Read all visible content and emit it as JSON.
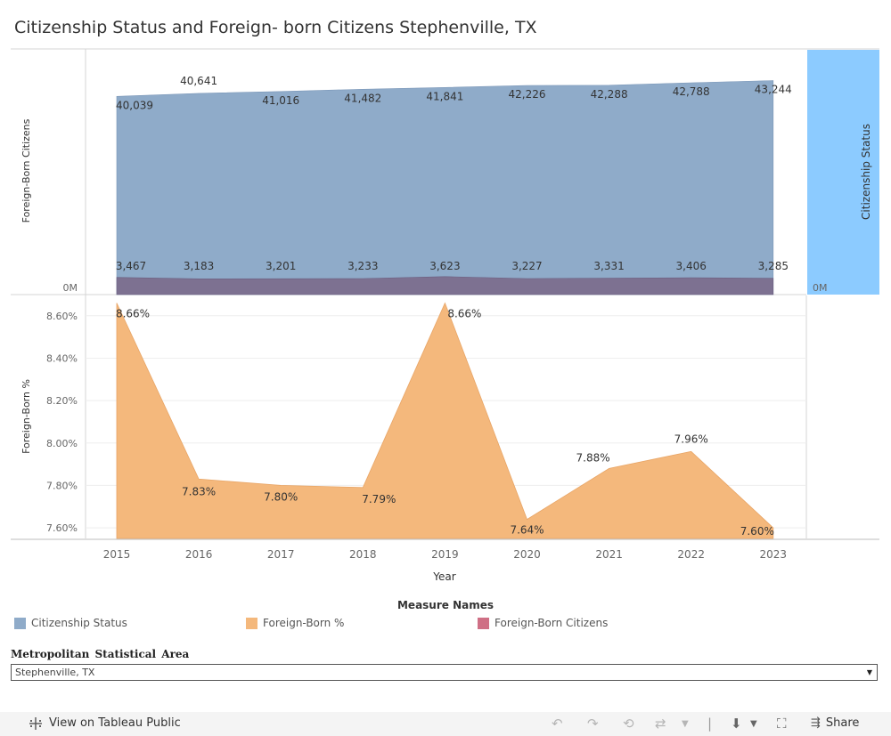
{
  "title": "Citizenship Status and Foreign- born Citizens Stephenville, TX",
  "chart_data": [
    {
      "type": "area",
      "ylabel": "Foreign-Born Citizens",
      "ylabel_right": "Citizenship Status",
      "y_tick": "0M",
      "y_tick_right": "0M",
      "x": [
        "2015",
        "2016",
        "2017",
        "2018",
        "2019",
        "2020",
        "2021",
        "2022",
        "2023"
      ],
      "series": [
        {
          "name": "Citizenship Status",
          "color": "#8fabc9",
          "values": [
            40039,
            40641,
            41016,
            41482,
            41841,
            42226,
            42288,
            42788,
            43244
          ],
          "labels": [
            "40,039",
            "40,641",
            "41,016",
            "41,482",
            "41,841",
            "42,226",
            "42,288",
            "42,788",
            "43,244"
          ]
        },
        {
          "name": "Foreign-Born Citizens",
          "color": "#7d7191",
          "values": [
            3467,
            3183,
            3201,
            3233,
            3623,
            3227,
            3331,
            3406,
            3285
          ],
          "labels": [
            "3,467",
            "3,183",
            "3,201",
            "3,233",
            "3,623",
            "3,227",
            "3,331",
            "3,406",
            "3,285"
          ]
        }
      ]
    },
    {
      "type": "area",
      "ylabel": "Foreign-Born %",
      "xlabel": "Year",
      "x": [
        "2015",
        "2016",
        "2017",
        "2018",
        "2019",
        "2020",
        "2021",
        "2022",
        "2023"
      ],
      "y_ticks": [
        "7.60%",
        "7.80%",
        "8.00%",
        "8.20%",
        "8.40%",
        "8.60%"
      ],
      "ylim": [
        7.55,
        8.7
      ],
      "series": [
        {
          "name": "Foreign-Born %",
          "color": "#f4b87c",
          "values": [
            8.66,
            7.83,
            7.8,
            7.79,
            8.66,
            7.64,
            7.88,
            7.96,
            7.6
          ],
          "labels": [
            "8.66%",
            "7.83%",
            "7.80%",
            "7.79%",
            "8.66%",
            "7.64%",
            "7.88%",
            "7.96%",
            "7.60%"
          ]
        }
      ]
    }
  ],
  "legend": {
    "title": "Measure Names",
    "items": [
      {
        "label": "Citizenship Status",
        "color": "#8fabc9"
      },
      {
        "label": "Foreign-Born %",
        "color": "#f4b87c"
      },
      {
        "label": "Foreign-Born Citizens",
        "color": "#cf6f85"
      }
    ]
  },
  "filter": {
    "label": "Metropolitan  Statistical  Area",
    "value": "Stephenville, TX"
  },
  "footer": {
    "view_label": "View on Tableau Public",
    "share_label": "Share"
  }
}
